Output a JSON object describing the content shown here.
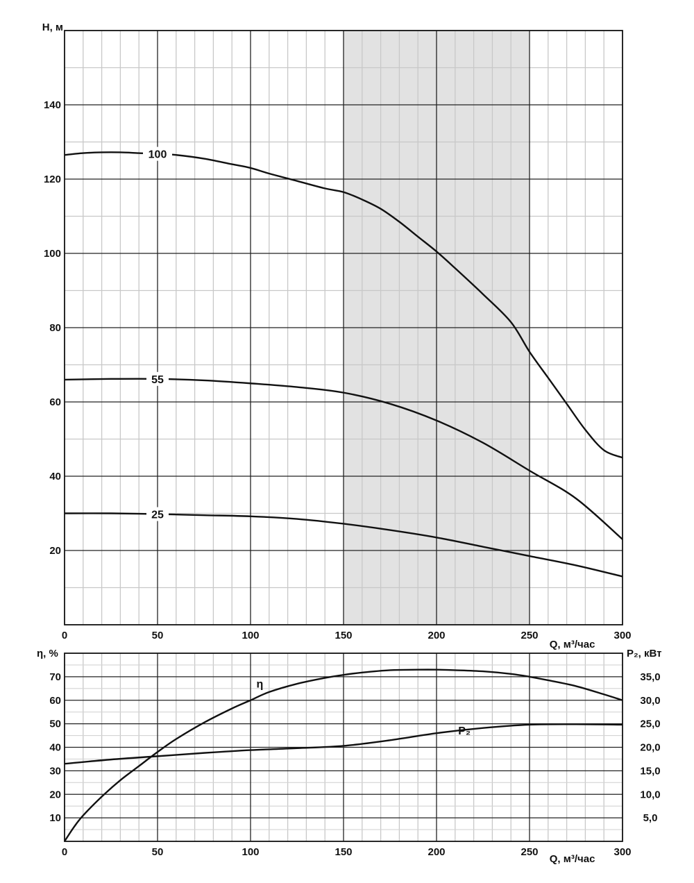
{
  "chart_data": [
    {
      "type": "line",
      "xlabel": "Q, м³/час",
      "ylabel": "H, м",
      "xlim": [
        0,
        300
      ],
      "ylim": [
        0,
        160
      ],
      "x_ticks": [
        "0",
        "50",
        "100",
        "150",
        "200",
        "250",
        "300"
      ],
      "y_ticks": [
        "20",
        "40",
        "60",
        "80",
        "100",
        "120",
        "140"
      ],
      "grid": true,
      "shaded_region": {
        "x_from": 150,
        "x_to": 250,
        "color": "#e2e2e2"
      },
      "series": [
        {
          "name": "100",
          "x": [
            0,
            10,
            20,
            30,
            40,
            50,
            60,
            75,
            90,
            100,
            110,
            125,
            140,
            150,
            160,
            170,
            180,
            190,
            200,
            210,
            225,
            240,
            250,
            260,
            270,
            280,
            290,
            300
          ],
          "values": [
            126.5,
            127,
            127.2,
            127.2,
            127,
            126.8,
            126.5,
            125.5,
            124,
            123,
            121.5,
            119.5,
            117.5,
            116.5,
            114.5,
            112,
            108.5,
            104.5,
            100.5,
            96,
            89,
            81.5,
            73.5,
            66.5,
            59.5,
            52.5,
            47,
            45
          ]
        },
        {
          "name": "55",
          "x": [
            0,
            25,
            50,
            75,
            100,
            125,
            150,
            175,
            200,
            225,
            250,
            275,
            300
          ],
          "values": [
            66,
            66.2,
            66.2,
            65.8,
            65,
            64,
            62.5,
            59.5,
            55,
            49,
            41.5,
            34,
            23
          ]
        },
        {
          "name": "25",
          "x": [
            0,
            25,
            50,
            75,
            100,
            125,
            150,
            175,
            200,
            225,
            250,
            275,
            300
          ],
          "values": [
            30,
            30,
            29.8,
            29.5,
            29.2,
            28.5,
            27.2,
            25.5,
            23.5,
            21,
            18.5,
            16,
            13
          ]
        }
      ]
    },
    {
      "type": "line",
      "xlabel": "Q, м³/час",
      "ylabel": "η, %",
      "ylabel_right": "P₂, кВт",
      "xlim": [
        0,
        300
      ],
      "ylim": [
        0,
        80
      ],
      "ylim_right": [
        0,
        40
      ],
      "x_ticks": [
        "0",
        "50",
        "100",
        "150",
        "200",
        "250",
        "300"
      ],
      "y_ticks": [
        "10",
        "20",
        "30",
        "40",
        "50",
        "60",
        "70"
      ],
      "y_ticks_right": [
        "5,0",
        "10,0",
        "15,0",
        "20,0",
        "25,0",
        "30,0",
        "35,0"
      ],
      "grid": true,
      "series": [
        {
          "name": "η",
          "axis": "left",
          "x": [
            0,
            5,
            10,
            20,
            30,
            40,
            50,
            60,
            75,
            90,
            100,
            110,
            125,
            140,
            150,
            160,
            175,
            190,
            200,
            210,
            225,
            240,
            250,
            260,
            275,
            290,
            300
          ],
          "values": [
            0,
            6,
            11,
            19,
            26,
            32,
            38,
            43.5,
            50.5,
            56.5,
            60,
            63.5,
            67,
            69.5,
            70.8,
            71.8,
            72.8,
            73,
            73,
            72.8,
            72.3,
            71.2,
            70,
            68.5,
            66,
            62.5,
            60
          ]
        },
        {
          "name": "P₂",
          "axis": "right",
          "x": [
            0,
            25,
            50,
            75,
            100,
            125,
            150,
            175,
            200,
            225,
            250,
            275,
            300
          ],
          "values": [
            16.5,
            17.4,
            18.1,
            18.8,
            19.4,
            19.8,
            20.3,
            21.5,
            23,
            24.1,
            24.8,
            24.9,
            24.8
          ]
        }
      ]
    }
  ]
}
